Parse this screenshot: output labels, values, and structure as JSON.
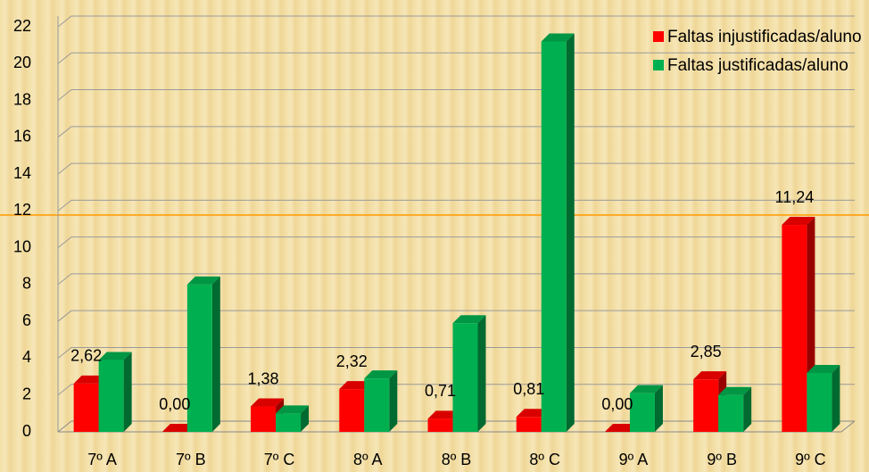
{
  "chart_data": {
    "type": "bar3d",
    "categories": [
      "7º A",
      "7º B",
      "7º C",
      "8º A",
      "8º B",
      "8º C",
      "9º A",
      "9º B",
      "9º C"
    ],
    "series": [
      {
        "name": "Faltas injustificadas/aluno",
        "color": "#ff0000",
        "values": [
          2.62,
          0.0,
          1.38,
          2.32,
          0.71,
          0.81,
          0.0,
          2.85,
          11.24
        ],
        "value_labels": [
          "2,62",
          "0,00",
          "1,38",
          "2,32",
          "0,71",
          "0,81",
          "0,00",
          "2,85",
          "11,24"
        ]
      },
      {
        "name": "Faltas justificadas/aluno",
        "color": "#00b050",
        "values": [
          3.9,
          8.0,
          1.0,
          2.9,
          5.9,
          21.2,
          2.1,
          2.0,
          3.2
        ]
      }
    ],
    "ylim": [
      0,
      22
    ],
    "yticks": [
      0,
      2,
      4,
      6,
      8,
      10,
      12,
      14,
      16,
      18,
      20,
      22
    ],
    "grid": true,
    "legend": "top-right"
  }
}
